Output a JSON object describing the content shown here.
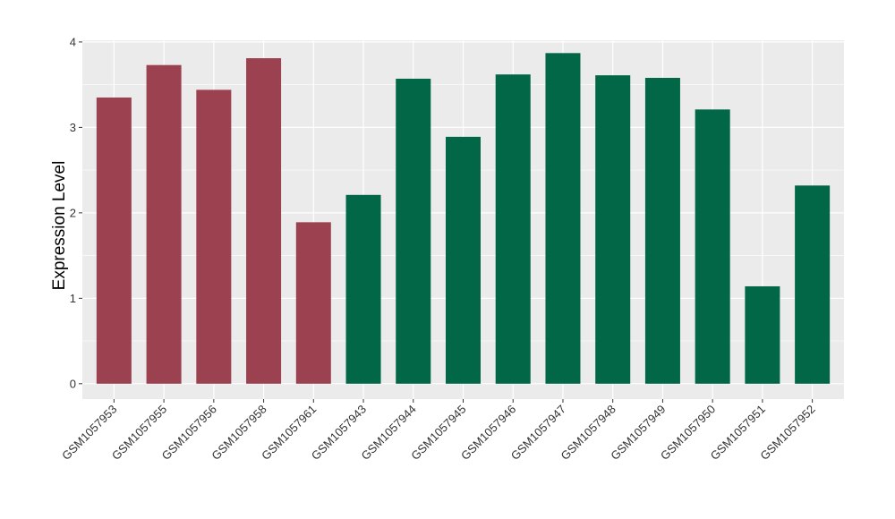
{
  "chart_data": {
    "type": "bar",
    "ylabel": "Expression Level",
    "xlabel": "",
    "title": "",
    "ylim": [
      -0.18,
      4.02
    ],
    "yticks": [
      0,
      1,
      2,
      3,
      4
    ],
    "grid": true,
    "panel_background": "#ebebeb",
    "gridline_color": "#ffffff",
    "legend": "none",
    "categories": [
      "GSM1057953",
      "GSM1057955",
      "GSM1057956",
      "GSM1057958",
      "GSM1057961",
      "GSM1057943",
      "GSM1057944",
      "GSM1057945",
      "GSM1057946",
      "GSM1057947",
      "GSM1057948",
      "GSM1057949",
      "GSM1057950",
      "GSM1057951",
      "GSM1057952"
    ],
    "values": [
      3.35,
      3.73,
      3.44,
      3.81,
      1.89,
      2.21,
      3.57,
      2.89,
      3.62,
      3.87,
      3.61,
      3.58,
      3.21,
      1.14,
      2.32
    ],
    "bar_colors": [
      "#9b4150",
      "#9b4150",
      "#9b4150",
      "#9b4150",
      "#9b4150",
      "#026747",
      "#026747",
      "#026747",
      "#026747",
      "#026747",
      "#026747",
      "#026747",
      "#026747",
      "#026747",
      "#026747"
    ]
  }
}
